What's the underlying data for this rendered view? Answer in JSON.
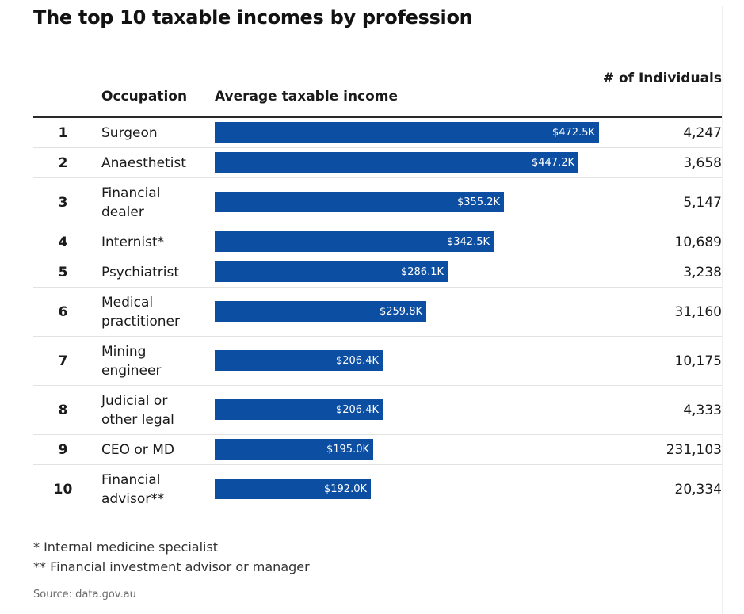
{
  "title": "The top 10 taxable incomes by profession",
  "headers": {
    "occupation": "Occupation",
    "income": "Average taxable income",
    "individuals": "# of Individuals"
  },
  "chart_data": {
    "type": "bar",
    "orientation": "horizontal",
    "title": "The top 10 taxable incomes by profession",
    "xlim": [
      0,
      472.5
    ],
    "categories": [
      "Surgeon",
      "Anaesthetist",
      "Financial dealer",
      "Internist*",
      "Psychiatrist",
      "Medical practitioner",
      "Mining engineer",
      "Judicial or other legal",
      "CEO or MD",
      "Financial advisor**"
    ],
    "ranks": [
      "1",
      "2",
      "3",
      "4",
      "5",
      "6",
      "7",
      "8",
      "9",
      "10"
    ],
    "values": [
      472.5,
      447.2,
      355.2,
      342.5,
      286.1,
      259.8,
      206.4,
      206.4,
      195.0,
      192.0
    ],
    "value_labels": [
      "$472.5K",
      "$447.2K",
      "$355.2K",
      "$342.5K",
      "$286.1K",
      "$259.8K",
      "$206.4K",
      "$206.4K",
      "$195.0K",
      "$192.0K"
    ],
    "individuals": [
      "4,247",
      "3,658",
      "5,147",
      "10,689",
      "3,238",
      "31,160",
      "10,175",
      "4,333",
      "231,103",
      "20,334"
    ],
    "bar_color": "#0b4ea2"
  },
  "footnotes": [
    "* Internal medicine specialist",
    "** Financial investment advisor or manager"
  ],
  "source": "Source: data.gov.au"
}
